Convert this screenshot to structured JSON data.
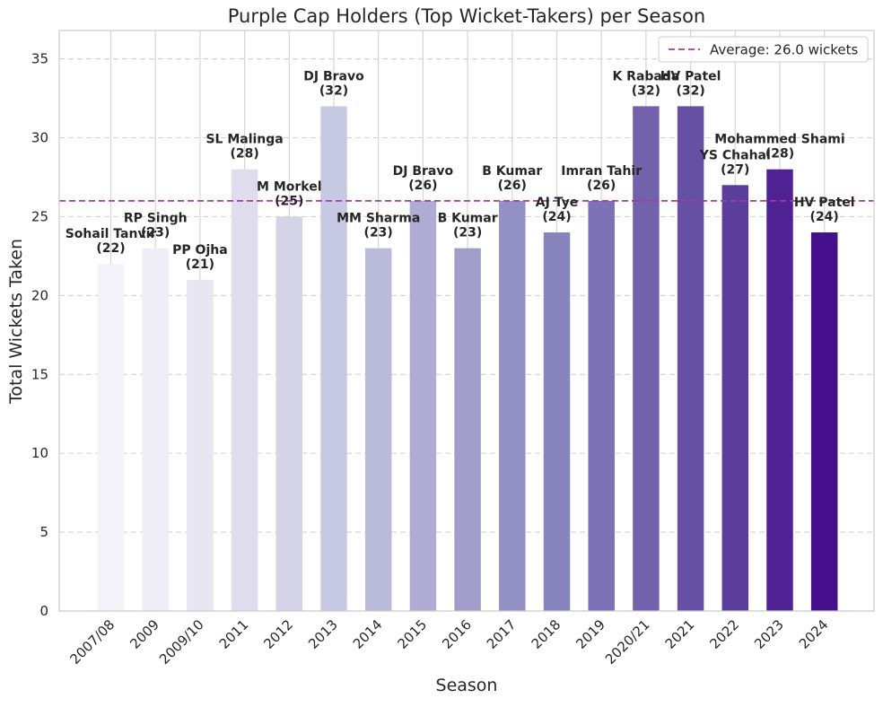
{
  "chart_data": {
    "type": "bar",
    "title": "Purple Cap Holders (Top Wicket-Takers) per Season",
    "xlabel": "Season",
    "ylabel": "Total Wickets Taken",
    "ylim": [
      0,
      36.8
    ],
    "yticks": [
      0,
      5,
      10,
      15,
      20,
      25,
      30,
      35
    ],
    "grid": "dashed horizontal and solid vertical",
    "legend_position": "top-right",
    "categories": [
      "2007/08",
      "2009",
      "2009/10",
      "2011",
      "2012",
      "2013",
      "2014",
      "2015",
      "2016",
      "2017",
      "2018",
      "2019",
      "2020/21",
      "2021",
      "2022",
      "2023",
      "2024"
    ],
    "values": [
      22,
      23,
      21,
      28,
      25,
      32,
      23,
      26,
      23,
      26,
      24,
      26,
      32,
      32,
      27,
      28,
      24
    ],
    "players": [
      "Sohail Tanvir",
      "RP Singh",
      "PP Ojha",
      "SL Malinga",
      "M Morkel",
      "DJ Bravo",
      "MM Sharma",
      "DJ Bravo",
      "B Kumar",
      "B Kumar",
      "AJ Tye",
      "Imran Tahir",
      "K Rabada",
      "HV Patel",
      "YS Chahal",
      "Mohammed Shami",
      "HV Patel"
    ],
    "value_labels": [
      "(22)",
      "(23)",
      "(21)",
      "(28)",
      "(25)",
      "(32)",
      "(23)",
      "(26)",
      "(23)",
      "(26)",
      "(24)",
      "(26)",
      "(32)",
      "(32)",
      "(27)",
      "(28)",
      "(24)"
    ],
    "bar_colors": [
      "#f4f3f9",
      "#efedf5",
      "#e8e6f2",
      "#dedced",
      "#d4d3e8",
      "#c7c8e2",
      "#babadb",
      "#aeacd3",
      "#a19dca",
      "#9390c3",
      "#8784be",
      "#7c72b5",
      "#7261ab",
      "#6650a3",
      "#5b3e9b",
      "#4f2293",
      "#460f8b"
    ],
    "average": {
      "value": 26.0,
      "label": "Average: 26.0 wickets",
      "color": "#a13ba7"
    }
  }
}
